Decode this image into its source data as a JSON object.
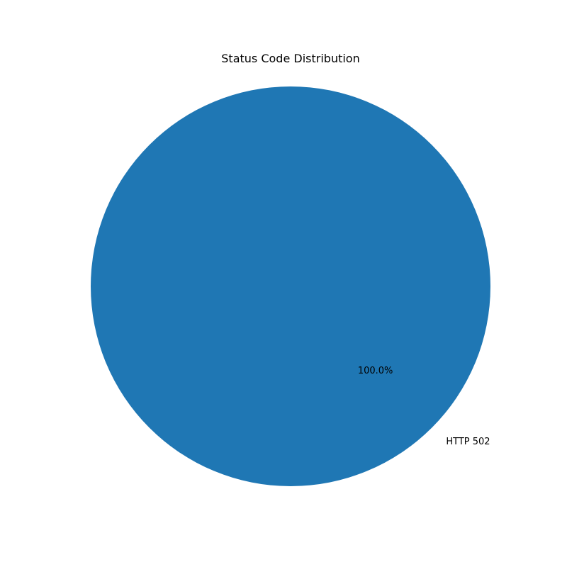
{
  "chart_data": {
    "type": "pie",
    "title": "Status Code Distribution",
    "categories": [
      "HTTP 502"
    ],
    "values": [
      100
    ],
    "percent_labels": [
      "100.0%"
    ],
    "colors": [
      "#1f77b4"
    ],
    "legend": "none"
  }
}
